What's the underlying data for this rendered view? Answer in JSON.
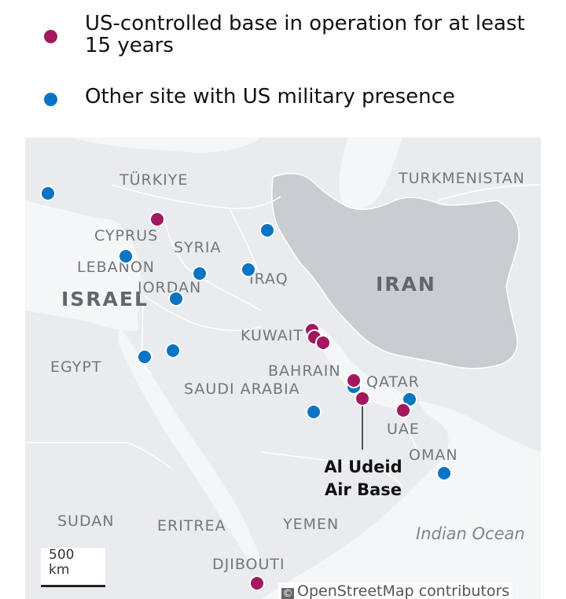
{
  "legend": {
    "items": [
      {
        "label": "US-controlled base in operation for at least 15 years",
        "color": "#a3185e"
      },
      {
        "label": "Other site with US military presence",
        "color": "#0a74c4"
      }
    ]
  },
  "map": {
    "countries": {
      "turkiye": "TÜRKIYE",
      "turkmenistan": "TURKMENISTAN",
      "cyprus": "CYPRUS",
      "syria": "SYRIA",
      "lebanon": "LEBANON",
      "iraq": "IRAQ",
      "israel": "ISRAEL",
      "jordan": "JORDAN",
      "iran": "IRAN",
      "kuwait": "KUWAIT",
      "egypt": "EGYPT",
      "bahrain": "BAHRAIN",
      "qatar": "QATAR",
      "saudi_arabia": "SAUDI ARABIA",
      "uae": "UAE",
      "oman": "OMAN",
      "sudan": "SUDAN",
      "eritrea": "ERITREA",
      "yemen": "YEMEN",
      "djibouti": "DJIBOUTI"
    },
    "water": {
      "indian_ocean": "Indian Ocean"
    },
    "callout": {
      "line1": "Al Udeid",
      "line2": "Air Base"
    },
    "scale": {
      "value": "500",
      "unit": "km"
    },
    "attribution": {
      "symbol": "©",
      "text": "OpenStreetMap contributors"
    },
    "colors": {
      "land": "#e9ebee",
      "water": "#f5f6f8",
      "iran": "#c9cdd2",
      "border": "#ffffff",
      "long_term": "#a3185e",
      "other": "#0a74c4"
    }
  }
}
